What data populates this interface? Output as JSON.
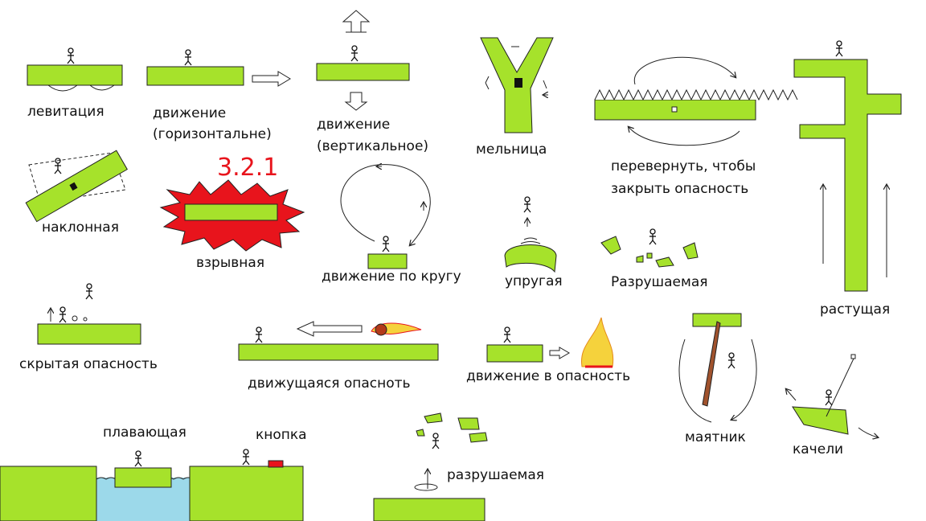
{
  "colors": {
    "platform": "#a6e22b",
    "water": "#9cd9ea",
    "explosion": "#e8141c",
    "text": "#111111",
    "button": "#e8141c"
  },
  "labels": {
    "levitation": "левитация",
    "move_h_1": "движение",
    "move_h_2": "(горизонтальне)",
    "move_v_1": "движение",
    "move_v_2": "(вертикальное)",
    "mill": "мельница",
    "flip_1": "перевернуть, чтобы",
    "flip_2": "закрыть опасность",
    "tilted": "наклонная",
    "countdown": "3.2.1",
    "explosive": "взрывная",
    "circle": "движение по кругу",
    "elastic": "упругая",
    "destructible_cap": "Разрушаемая",
    "growing": "растущая",
    "hidden": "скрытая опасность",
    "moving_danger": "движущаяся опаснoть",
    "into_danger": "движение в опасность",
    "pendulum": "маятник",
    "swing": "качели",
    "floating": "плавающая",
    "button": "кнопка",
    "destructible": "разрушаемая"
  },
  "icons": [
    "stick-figure-icon",
    "arrow-up-icon",
    "arrow-down-icon",
    "arrow-right-icon",
    "arrow-left-icon",
    "fire-icon",
    "fireball-icon",
    "spikes-icon",
    "explosion-icon"
  ]
}
